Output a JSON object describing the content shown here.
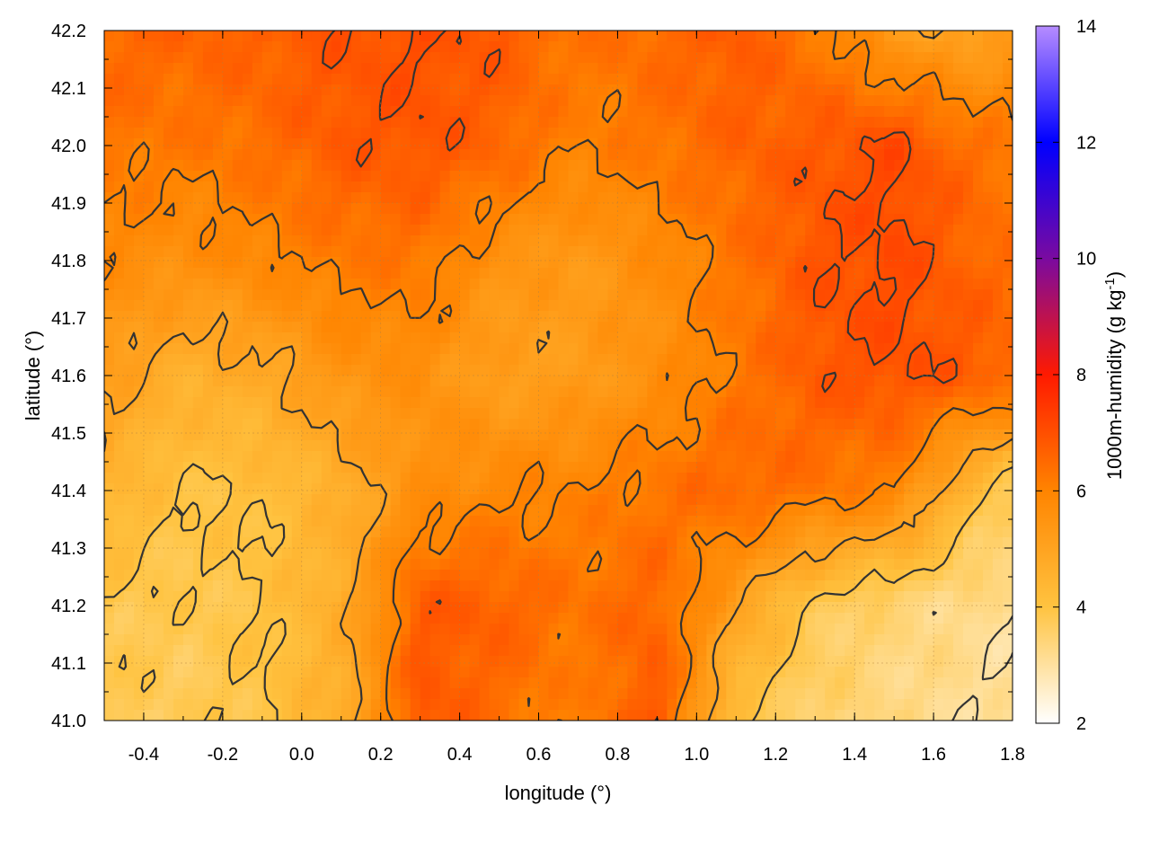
{
  "chart_data": {
    "type": "heatmap",
    "title": "",
    "xlabel": "longitude (°)",
    "ylabel": "latitude (°)",
    "xlim": [
      -0.5,
      1.8
    ],
    "ylim": [
      41.0,
      42.2
    ],
    "x_ticks": [
      "-0.4",
      "-0.2",
      "0.0",
      "0.2",
      "0.4",
      "0.6",
      "0.8",
      "1.0",
      "1.2",
      "1.4",
      "1.6",
      "1.8"
    ],
    "x_tick_values": [
      -0.4,
      -0.2,
      0.0,
      0.2,
      0.4,
      0.6,
      0.8,
      1.0,
      1.2,
      1.4,
      1.6,
      1.8
    ],
    "y_ticks": [
      "41.0",
      "41.1",
      "41.2",
      "41.3",
      "41.4",
      "41.5",
      "41.6",
      "41.7",
      "41.8",
      "41.9",
      "42.0",
      "42.1",
      "42.2"
    ],
    "y_tick_values": [
      41.0,
      41.1,
      41.2,
      41.3,
      41.4,
      41.5,
      41.6,
      41.7,
      41.8,
      41.9,
      42.0,
      42.1,
      42.2
    ],
    "grid": true,
    "colorbar": {
      "label": "1000m-humidity (g kg-1)",
      "label_main": "1000m-humidity (g kg",
      "label_sup": "-1",
      "label_end": ")",
      "range": [
        2,
        14
      ],
      "ticks": [
        "2",
        "4",
        "6",
        "8",
        "10",
        "12",
        "14"
      ],
      "tick_values": [
        2,
        4,
        6,
        8,
        10,
        12,
        14
      ],
      "palette": [
        {
          "value": 2,
          "color": "#ffffff"
        },
        {
          "value": 4,
          "color": "#ffc340"
        },
        {
          "value": 6,
          "color": "#ff8400"
        },
        {
          "value": 8,
          "color": "#ff1a00"
        },
        {
          "value": 10,
          "color": "#7a0aa0"
        },
        {
          "value": 12,
          "color": "#0000ff"
        },
        {
          "value": 14,
          "color": "#b68cff"
        }
      ]
    },
    "contour_levels": [
      3,
      4,
      5,
      6,
      7
    ],
    "contour_color": "#333333",
    "field_x": [
      -0.5,
      -0.3,
      -0.1,
      0.1,
      0.3,
      0.5,
      0.7,
      0.9,
      1.1,
      1.3,
      1.5,
      1.7,
      1.8
    ],
    "field_y": [
      42.2,
      42.0,
      41.8,
      41.6,
      41.4,
      41.2,
      41.0
    ],
    "field_values": [
      [
        6.6,
        6.6,
        6.7,
        6.9,
        7.0,
        6.8,
        6.3,
        6.5,
        6.8,
        6.2,
        5.2,
        5.0,
        5.4
      ],
      [
        6.3,
        6.2,
        6.4,
        6.8,
        6.9,
        6.6,
        6.0,
        6.3,
        6.6,
        6.8,
        7.1,
        6.4,
        6.2
      ],
      [
        5.8,
        5.6,
        5.9,
        6.2,
        6.3,
        5.5,
        5.3,
        5.7,
        6.3,
        6.9,
        7.1,
        6.6,
        6.4
      ],
      [
        5.2,
        4.6,
        4.8,
        5.5,
        5.6,
        5.1,
        5.2,
        5.6,
        6.2,
        6.8,
        7.0,
        6.8,
        6.6
      ],
      [
        4.5,
        4.0,
        4.1,
        4.6,
        5.6,
        5.9,
        6.0,
        6.3,
        6.6,
        6.3,
        6.0,
        4.2,
        3.7
      ],
      [
        3.9,
        3.8,
        4.0,
        4.7,
        6.8,
        6.7,
        6.3,
        6.6,
        5.1,
        3.8,
        3.4,
        3.2,
        3.1
      ],
      [
        3.8,
        3.7,
        4.0,
        4.6,
        6.9,
        6.4,
        6.0,
        6.9,
        4.0,
        3.5,
        3.3,
        3.1,
        3.0
      ]
    ]
  }
}
